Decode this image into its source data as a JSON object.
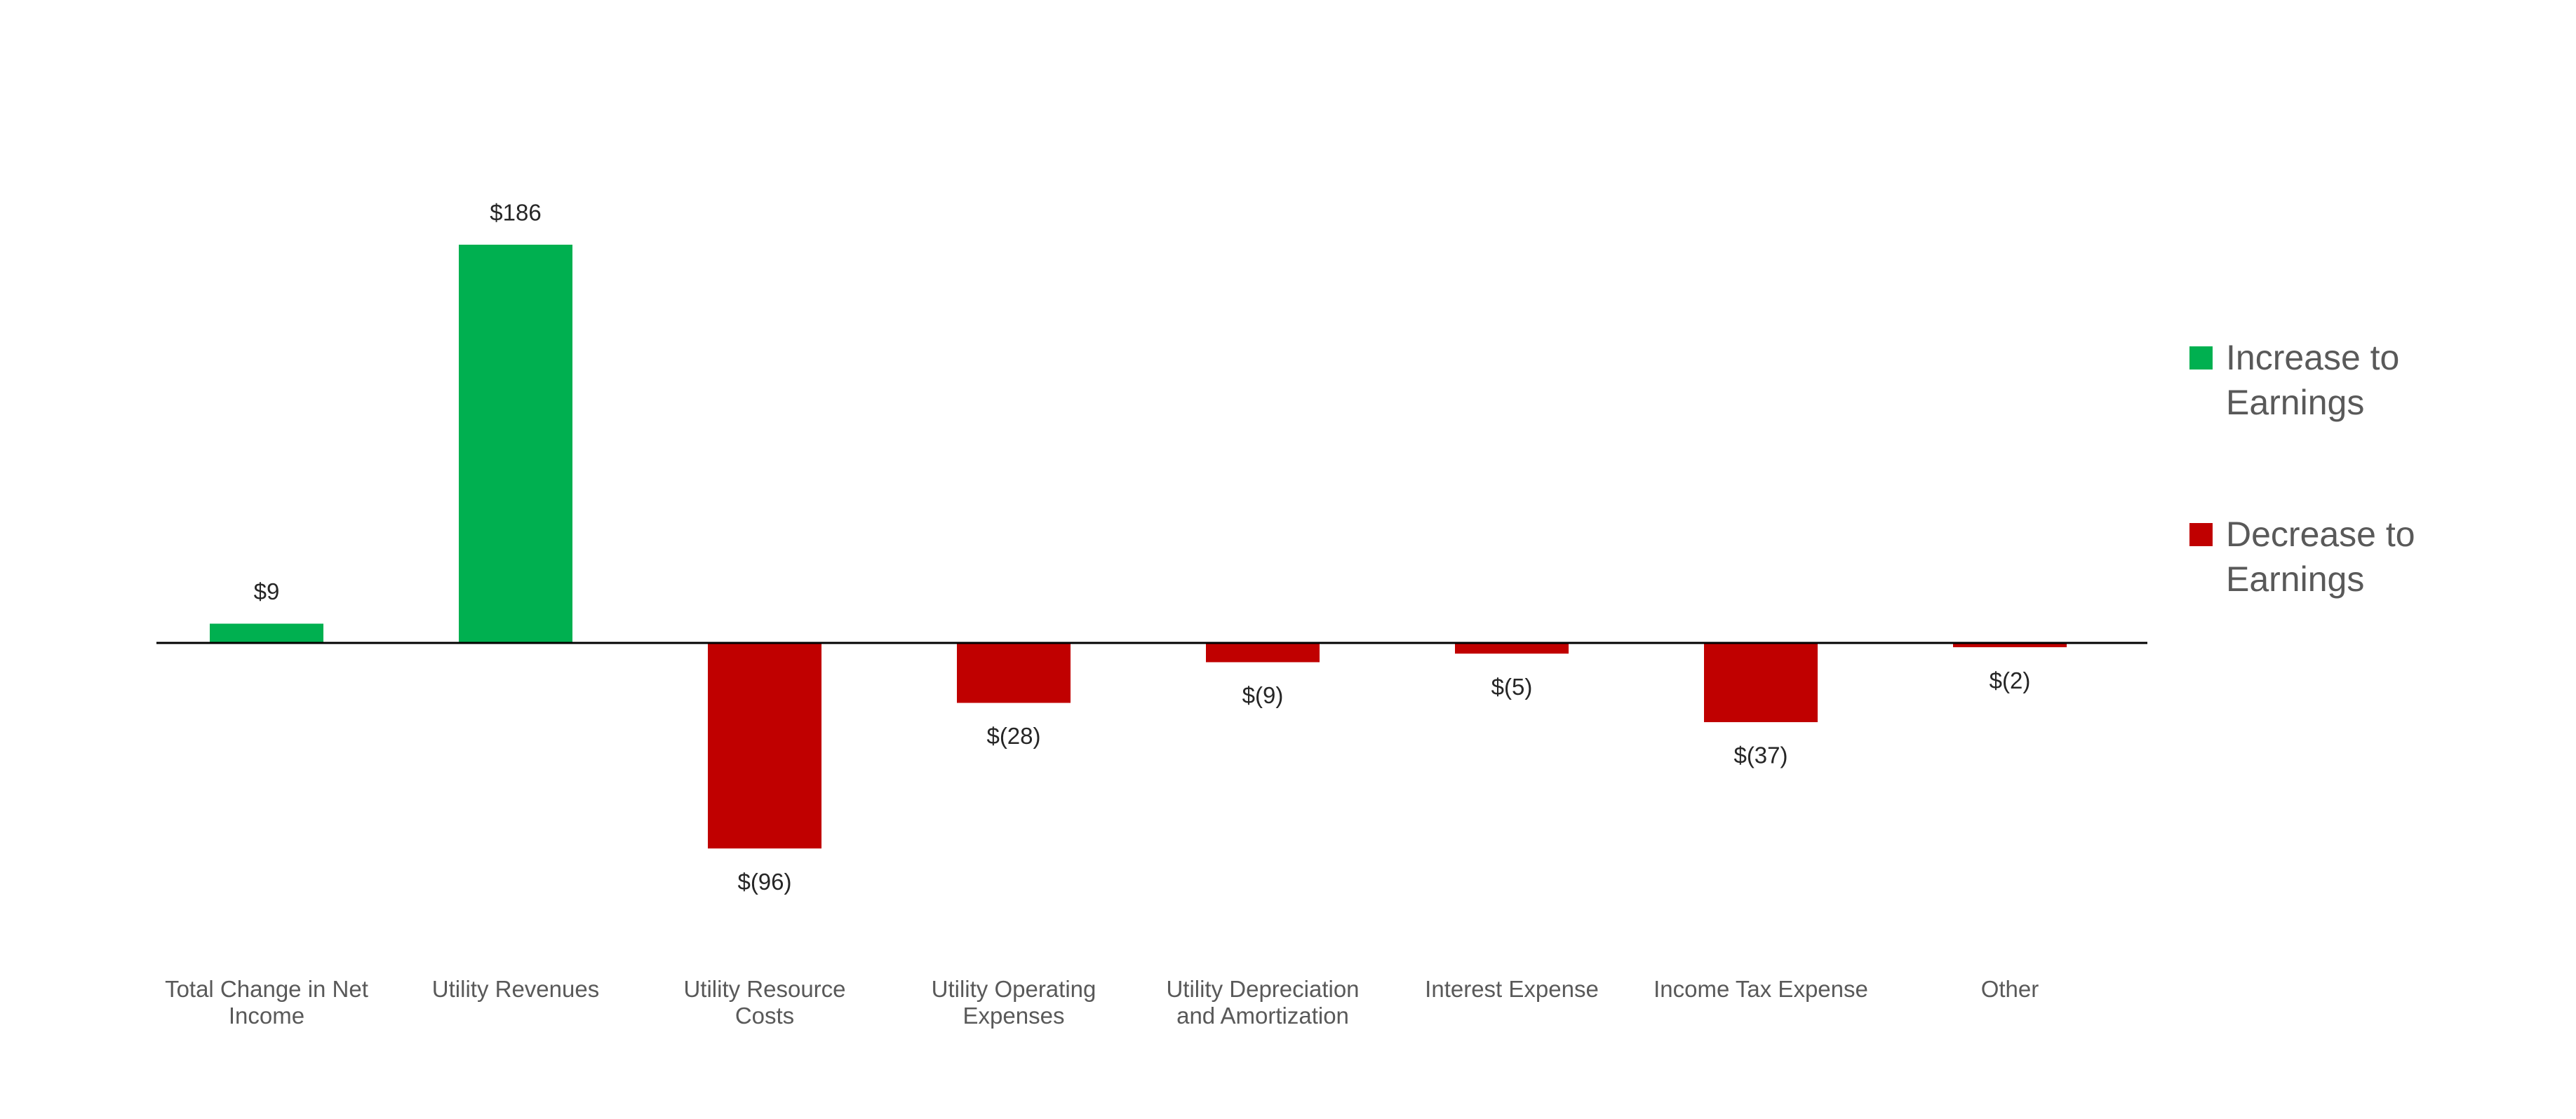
{
  "chart_data": {
    "type": "bar",
    "categories": [
      "Total Change in Net Income",
      "Utility Revenues",
      "Utility Resource Costs",
      "Utility Operating Expenses",
      "Utility Depreciation and Amortization",
      "Interest Expense",
      "Income Tax Expense",
      "Other"
    ],
    "values": [
      9,
      186,
      -96,
      -28,
      -9,
      -5,
      -37,
      -2
    ],
    "value_labels": [
      "$9",
      "$186",
      "$(96)",
      "$(28)",
      "$(9)",
      "$(5)",
      "$(37)",
      "$(2)"
    ],
    "series": [
      {
        "name": "Increase to Earnings",
        "color": "#00b050"
      },
      {
        "name": "Decrease to Earnings",
        "color": "#c00000"
      }
    ],
    "legend": "right"
  }
}
